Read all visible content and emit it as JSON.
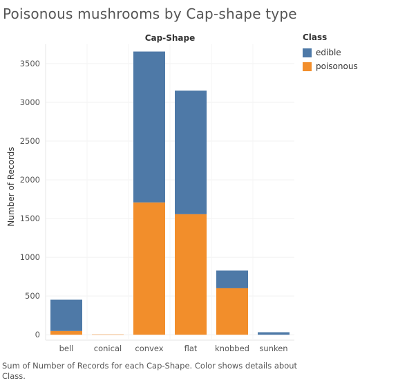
{
  "title": "Poisonous mushrooms by Cap-shape type",
  "caption": "Sum of Number of Records for each Cap-Shape.  Color shows details about Class.",
  "chart_data": {
    "type": "bar",
    "stacked": true,
    "header": "Cap-Shape",
    "ylabel": "Number of Records",
    "categories": [
      "bell",
      "conical",
      "convex",
      "flat",
      "knobbed",
      "sunken"
    ],
    "yticks": [
      0,
      500,
      1000,
      1500,
      2000,
      2500,
      3000,
      3500
    ],
    "ylim": [
      -70,
      3750
    ],
    "series": [
      {
        "name": "poisonous",
        "color": "#F28E2B",
        "values": [
          48,
          4,
          1708,
          1556,
          600,
          0
        ]
      },
      {
        "name": "edible",
        "color": "#4E79A7",
        "values": [
          404,
          0,
          1948,
          1596,
          228,
          32
        ]
      }
    ],
    "legend": {
      "title": "Class",
      "position": "right",
      "items": [
        {
          "label": "edible",
          "color": "#4E79A7"
        },
        {
          "label": "poisonous",
          "color": "#F28E2B"
        }
      ]
    },
    "grid": true
  }
}
